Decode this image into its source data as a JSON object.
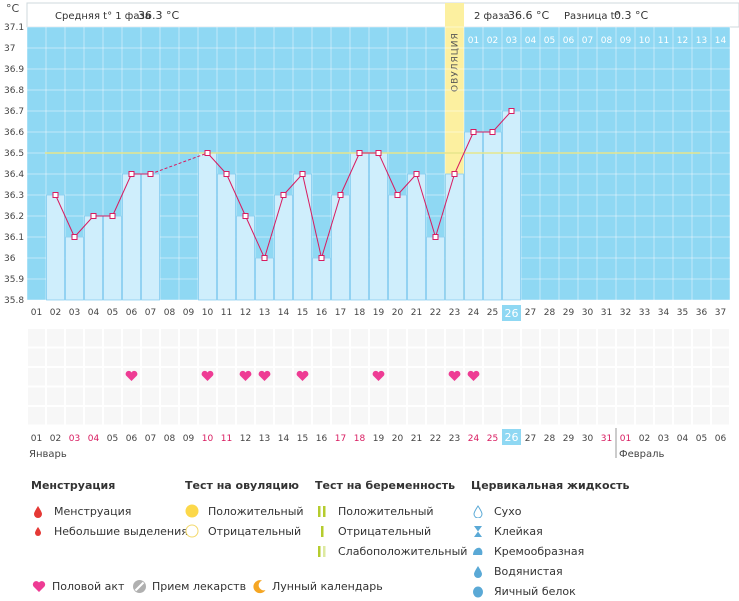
{
  "header": {
    "unit_label": "°C",
    "phase1_label": "Средняя t° 1 фаза",
    "phase1_value": "36.3 °C",
    "phase2_label": "2 фаза",
    "phase2_value": "36.6 °C",
    "diff_label": "Разница t°",
    "diff_value": "0.3 °C",
    "ovulation_label": "ОВУЛЯЦИЯ"
  },
  "chart_data": {
    "type": "bar",
    "x_cycle_days": [
      "01",
      "02",
      "03",
      "04",
      "05",
      "06",
      "07",
      "08",
      "09",
      "10",
      "11",
      "12",
      "13",
      "14",
      "15",
      "16",
      "17",
      "18",
      "19",
      "20",
      "21",
      "22",
      "23",
      "24",
      "25",
      "26",
      "27",
      "28",
      "29",
      "30",
      "31",
      "32",
      "33",
      "34",
      "35",
      "36",
      "37"
    ],
    "temperatures": [
      null,
      36.3,
      36.1,
      36.2,
      36.2,
      36.4,
      36.4,
      null,
      null,
      36.5,
      36.4,
      36.2,
      36.0,
      36.3,
      36.4,
      36.0,
      36.3,
      36.5,
      36.5,
      36.3,
      36.4,
      36.1,
      36.4,
      36.6,
      36.6,
      36.7,
      null,
      null,
      null,
      null,
      null,
      null,
      null,
      null,
      null,
      null,
      null
    ],
    "dashed_connection": [
      7,
      10
    ],
    "ylim": [
      35.8,
      37.1
    ],
    "yticks": [
      "37.1",
      "37",
      "36.9",
      "36.8",
      "36.7",
      "36.6",
      "36.5",
      "36.4",
      "36.3",
      "36.2",
      "36.1",
      "36",
      "35.9",
      "35.8"
    ],
    "coverline": 36.5,
    "ovulation_day": 23,
    "current_day": 26,
    "phase2_days_header": [
      "01",
      "02",
      "03",
      "04",
      "05",
      "06",
      "07",
      "08",
      "09",
      "10",
      "11",
      "12",
      "13",
      "14"
    ],
    "intercourse_days": [
      6,
      10,
      12,
      13,
      15,
      19,
      23,
      24
    ],
    "colors": {
      "bar_fill": "#cfeefc",
      "bar_stroke": "#7cc8ee",
      "line": "#d81b60",
      "ovulation": "#fcf0a0",
      "sky": "#8fd8f3",
      "coverline": "#e6e68c",
      "heart": "#ee3c94"
    }
  },
  "calendar": {
    "dates": [
      "01",
      "02",
      "03",
      "04",
      "05",
      "06",
      "07",
      "08",
      "09",
      "10",
      "11",
      "12",
      "13",
      "14",
      "15",
      "16",
      "17",
      "18",
      "19",
      "20",
      "21",
      "22",
      "23",
      "24",
      "25",
      "26",
      "27",
      "28",
      "29",
      "30",
      "31",
      "01",
      "02",
      "03",
      "04",
      "05",
      "06"
    ],
    "red_indices": [
      2,
      3,
      9,
      10,
      16,
      17,
      23,
      24,
      30,
      31
    ],
    "month_jan": "Январь",
    "month_feb": "Февраль"
  },
  "legend": {
    "menstruation": {
      "title": "Менструация",
      "items": [
        "Менструация",
        "Небольшие выделения"
      ]
    },
    "ovulation_test": {
      "title": "Тест на овуляцию",
      "items": [
        "Положительный",
        "Отрицательный"
      ]
    },
    "pregnancy_test": {
      "title": "Тест на беременность",
      "items": [
        "Положительный",
        "Отрицательный",
        "Слабоположительный"
      ]
    },
    "cervical": {
      "title": "Цервикальная жидкость",
      "items": [
        "Сухо",
        "Клейкая",
        "Кремообразная",
        "Водянистая",
        "Яичный белок"
      ]
    }
  },
  "bottom": {
    "intercourse": "Половой акт",
    "medicine": "Прием лекарств",
    "lunar": "Лунный календарь"
  }
}
